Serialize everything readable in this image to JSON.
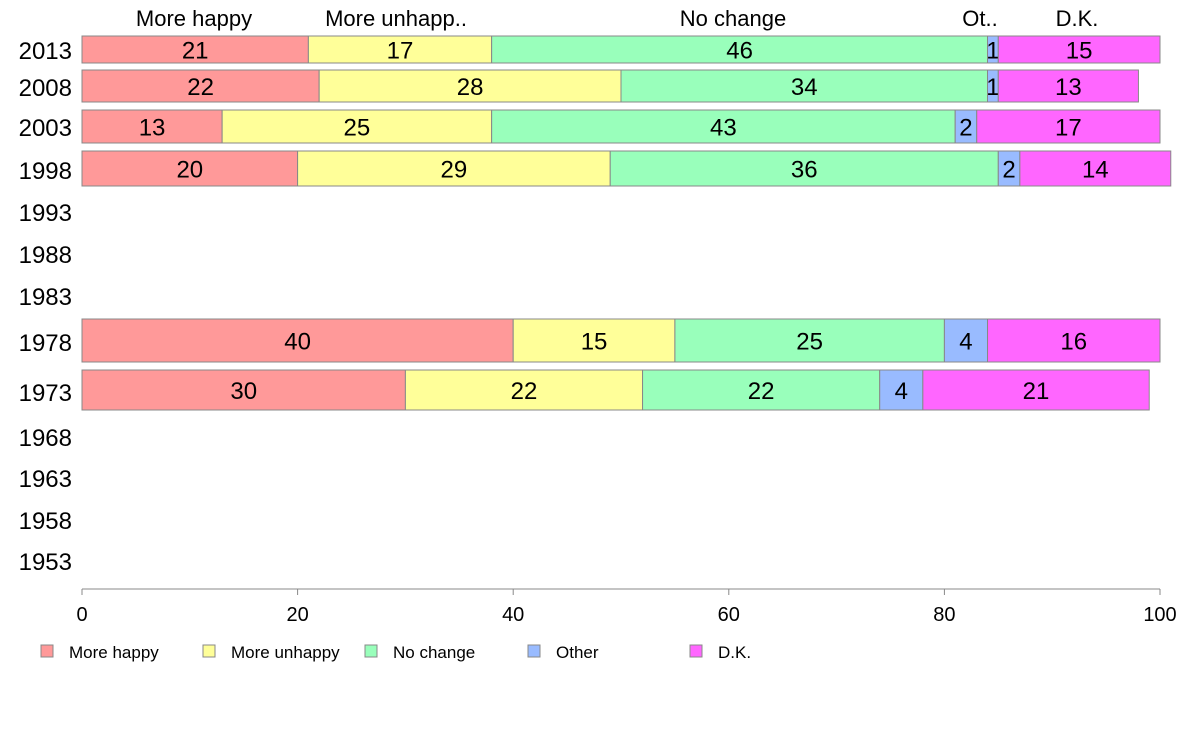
{
  "chart_data": {
    "type": "bar",
    "orientation": "horizontal",
    "stacked": true,
    "categories": [
      "2013",
      "2008",
      "2003",
      "1998",
      "1993",
      "1988",
      "1983",
      "1978",
      "1973",
      "1968",
      "1963",
      "1958",
      "1953"
    ],
    "column_headers": [
      "More happy",
      "More unhapp..",
      "No change",
      "Ot..",
      "D.K."
    ],
    "series": [
      {
        "name": "More happy",
        "color": "#FF9999",
        "values": [
          21,
          22,
          13,
          20,
          null,
          null,
          null,
          40,
          30,
          null,
          null,
          null,
          null
        ]
      },
      {
        "name": "More unhappy",
        "color": "#FFFF99",
        "values": [
          17,
          28,
          25,
          29,
          null,
          null,
          null,
          15,
          22,
          null,
          null,
          null,
          null
        ]
      },
      {
        "name": "No change",
        "color": "#99FFBB",
        "values": [
          46,
          34,
          43,
          36,
          null,
          null,
          null,
          25,
          22,
          null,
          null,
          null,
          null
        ]
      },
      {
        "name": "Other",
        "color": "#99BBFF",
        "values": [
          1,
          1,
          2,
          2,
          null,
          null,
          null,
          4,
          4,
          null,
          null,
          null,
          null
        ]
      },
      {
        "name": "D.K.",
        "color": "#FF66FF",
        "values": [
          15,
          13,
          17,
          14,
          null,
          null,
          null,
          16,
          21,
          null,
          null,
          null,
          null
        ]
      }
    ],
    "xlim": [
      0,
      100
    ],
    "xticks": [
      0,
      20,
      40,
      60,
      80,
      100
    ],
    "legend_position": "bottom-left",
    "grid": false
  }
}
